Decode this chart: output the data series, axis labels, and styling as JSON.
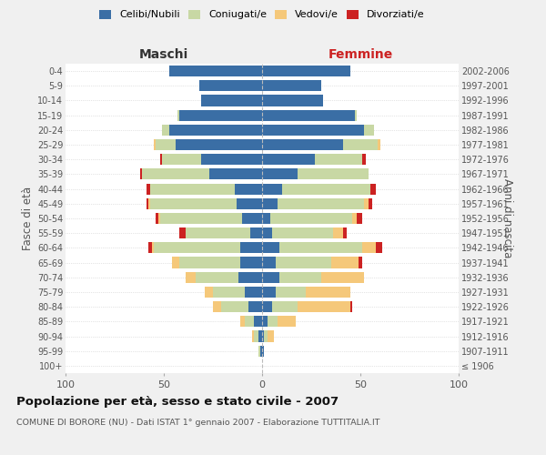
{
  "age_groups": [
    "100+",
    "95-99",
    "90-94",
    "85-89",
    "80-84",
    "75-79",
    "70-74",
    "65-69",
    "60-64",
    "55-59",
    "50-54",
    "45-49",
    "40-44",
    "35-39",
    "30-34",
    "25-29",
    "20-24",
    "15-19",
    "10-14",
    "5-9",
    "0-4"
  ],
  "birth_years": [
    "≤ 1906",
    "1907-1911",
    "1912-1916",
    "1917-1921",
    "1922-1926",
    "1927-1931",
    "1932-1936",
    "1937-1941",
    "1942-1946",
    "1947-1951",
    "1952-1956",
    "1957-1961",
    "1962-1966",
    "1967-1971",
    "1972-1976",
    "1977-1981",
    "1982-1986",
    "1987-1991",
    "1992-1996",
    "1997-2001",
    "2002-2006"
  ],
  "maschi": {
    "celibi": [
      0,
      1,
      2,
      4,
      7,
      9,
      12,
      11,
      11,
      6,
      10,
      13,
      14,
      27,
      31,
      44,
      47,
      42,
      31,
      32,
      47
    ],
    "coniugati": [
      0,
      1,
      2,
      5,
      14,
      16,
      22,
      31,
      44,
      33,
      42,
      44,
      43,
      34,
      20,
      10,
      4,
      1,
      0,
      0,
      0
    ],
    "vedovi": [
      0,
      0,
      1,
      2,
      4,
      4,
      5,
      4,
      1,
      0,
      1,
      1,
      0,
      0,
      0,
      1,
      0,
      0,
      0,
      0,
      0
    ],
    "divorziati": [
      0,
      0,
      0,
      0,
      0,
      0,
      0,
      0,
      2,
      3,
      1,
      1,
      2,
      1,
      1,
      0,
      0,
      0,
      0,
      0,
      0
    ]
  },
  "femmine": {
    "nubili": [
      0,
      1,
      1,
      3,
      5,
      7,
      9,
      7,
      9,
      5,
      4,
      8,
      10,
      18,
      27,
      41,
      52,
      47,
      31,
      30,
      45
    ],
    "coniugate": [
      0,
      0,
      2,
      5,
      13,
      15,
      21,
      28,
      42,
      31,
      42,
      44,
      45,
      36,
      24,
      18,
      5,
      1,
      0,
      0,
      0
    ],
    "vedove": [
      0,
      0,
      3,
      9,
      27,
      23,
      22,
      14,
      7,
      5,
      2,
      2,
      0,
      0,
      0,
      1,
      0,
      0,
      0,
      0,
      0
    ],
    "divorziate": [
      0,
      0,
      0,
      0,
      1,
      0,
      0,
      2,
      3,
      2,
      3,
      2,
      3,
      0,
      2,
      0,
      0,
      0,
      0,
      0,
      0
    ]
  },
  "colors": {
    "celibi": "#3a6ea5",
    "coniugati": "#c8d8a4",
    "vedovi": "#f5c87a",
    "divorziati": "#cc2222"
  },
  "xlim": 100,
  "title": "Popolazione per età, sesso e stato civile - 2007",
  "subtitle": "COMUNE DI BORORE (NU) - Dati ISTAT 1° gennaio 2007 - Elaborazione TUTTITALIA.IT",
  "xlabel_left": "Maschi",
  "xlabel_right": "Femmine",
  "ylabel_left": "Fasce di età",
  "ylabel_right": "Anni di nascita",
  "legend_labels": [
    "Celibi/Nubili",
    "Coniugati/e",
    "Vedovi/e",
    "Divorziati/e"
  ],
  "bg_color": "#f0f0f0",
  "plot_bg": "#ffffff"
}
